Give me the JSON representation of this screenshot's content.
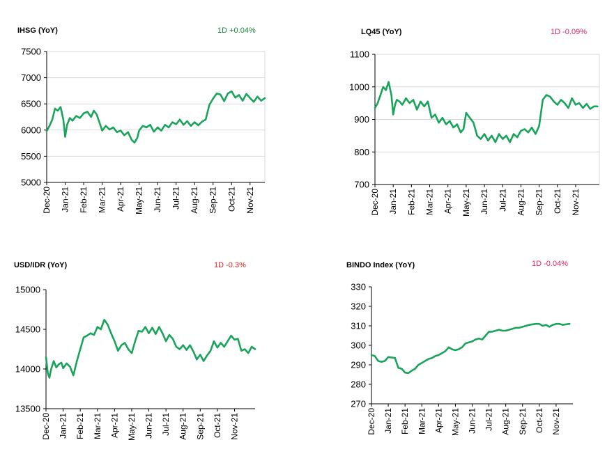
{
  "colors": {
    "line": "#1aa35a",
    "positive": "#1a8a3a",
    "negative": "#e0245e",
    "negative_red": "#e02020"
  },
  "chart_data": [
    {
      "id": "ihsg",
      "type": "line",
      "title": "IHSG (YoY)",
      "change_label": "1D +0.04%",
      "change_color": "#1a8a3a",
      "ylim": [
        5000,
        7500
      ],
      "yticks": [
        5000,
        5500,
        6000,
        6500,
        7000,
        7500
      ],
      "ytick_labels": [
        "5000",
        "5500",
        "6000",
        "6500",
        "7000",
        "7500"
      ],
      "categories": [
        "Dec-20",
        "Jan-21",
        "Feb-21",
        "Mar-21",
        "Apr-21",
        "May-21",
        "Jun-21",
        "Jul-21",
        "Aug-21",
        "Sep-21",
        "Oct-21",
        "Nov-21"
      ],
      "xlim": [
        0,
        11.8
      ],
      "grid": true,
      "series": [
        {
          "name": "IHSG",
          "x": [
            0,
            0.15,
            0.3,
            0.45,
            0.6,
            0.75,
            0.9,
            1.0,
            1.1,
            1.25,
            1.4,
            1.6,
            1.8,
            2.0,
            2.2,
            2.4,
            2.55,
            2.7,
            2.85,
            3.0,
            3.2,
            3.4,
            3.6,
            3.8,
            4.0,
            4.2,
            4.4,
            4.6,
            4.75,
            4.9,
            5.0,
            5.2,
            5.4,
            5.6,
            5.8,
            6.0,
            6.2,
            6.4,
            6.6,
            6.8,
            7.0,
            7.2,
            7.4,
            7.6,
            7.8,
            8.0,
            8.2,
            8.4,
            8.6,
            8.8,
            9.0,
            9.2,
            9.4,
            9.6,
            9.8,
            10.0,
            10.2,
            10.4,
            10.6,
            10.8,
            11.0,
            11.2,
            11.4,
            11.6,
            11.8
          ],
          "values": [
            5980,
            6080,
            6200,
            6410,
            6370,
            6440,
            6200,
            5870,
            6100,
            6230,
            6180,
            6270,
            6230,
            6320,
            6350,
            6250,
            6370,
            6300,
            6150,
            5990,
            6080,
            6010,
            6050,
            5960,
            5990,
            5900,
            5960,
            5810,
            5760,
            5850,
            5990,
            6080,
            6050,
            6100,
            5970,
            6050,
            5990,
            6100,
            6050,
            6150,
            6110,
            6200,
            6100,
            6170,
            6080,
            6150,
            6090,
            6160,
            6200,
            6480,
            6600,
            6700,
            6680,
            6550,
            6700,
            6740,
            6620,
            6670,
            6560,
            6690,
            6610,
            6540,
            6640,
            6560,
            6610
          ]
        }
      ]
    },
    {
      "id": "lq45",
      "type": "line",
      "title": "LQ45 (YoY)",
      "change_label": "1D -0.09%",
      "change_color": "#e0245e",
      "ylim": [
        700,
        1100
      ],
      "yticks": [
        700,
        800,
        900,
        1000,
        1100
      ],
      "ytick_labels": [
        "700",
        "800",
        "900",
        "1000",
        "1100"
      ],
      "categories": [
        "Dec-20",
        "Jan-21",
        "Feb-21",
        "Mar-21",
        "Apr-21",
        "May-21",
        "Jun-21",
        "Jul-21",
        "Aug-21",
        "Sep-21",
        "Oct-21",
        "Nov-21"
      ],
      "xlim": [
        0,
        12.3
      ],
      "grid": true,
      "series": [
        {
          "name": "LQ45",
          "x": [
            0,
            0.15,
            0.3,
            0.45,
            0.6,
            0.75,
            0.9,
            1.0,
            1.1,
            1.2,
            1.35,
            1.5,
            1.7,
            1.9,
            2.1,
            2.3,
            2.5,
            2.7,
            2.9,
            3.1,
            3.3,
            3.5,
            3.7,
            3.9,
            4.1,
            4.3,
            4.5,
            4.7,
            4.85,
            5.0,
            5.2,
            5.4,
            5.6,
            5.8,
            6.0,
            6.2,
            6.4,
            6.6,
            6.8,
            7.0,
            7.2,
            7.4,
            7.6,
            7.8,
            8.0,
            8.2,
            8.4,
            8.6,
            8.8,
            9.0,
            9.2,
            9.4,
            9.6,
            9.8,
            10.0,
            10.2,
            10.4,
            10.6,
            10.8,
            11.0,
            11.2,
            11.4,
            11.6,
            11.8,
            12.0,
            12.2
          ],
          "values": [
            935,
            950,
            975,
            1000,
            990,
            1015,
            975,
            915,
            945,
            960,
            955,
            945,
            965,
            950,
            960,
            930,
            955,
            940,
            955,
            905,
            915,
            890,
            905,
            885,
            895,
            875,
            885,
            860,
            870,
            920,
            905,
            890,
            850,
            840,
            855,
            835,
            850,
            830,
            855,
            840,
            850,
            830,
            855,
            845,
            865,
            870,
            860,
            875,
            855,
            880,
            960,
            975,
            970,
            955,
            945,
            960,
            950,
            935,
            965,
            945,
            950,
            935,
            948,
            932,
            940,
            940
          ]
        }
      ]
    },
    {
      "id": "usdidr",
      "type": "line",
      "title": "USD/IDR (YoY)",
      "change_label": "1D -0.3%",
      "change_color": "#e02020",
      "ylim": [
        13500,
        15000
      ],
      "yticks": [
        13500,
        14000,
        14500,
        15000
      ],
      "ytick_labels": [
        "13500",
        "14000",
        "14500",
        "15000"
      ],
      "categories": [
        "Dec-20",
        "Jan-21",
        "Feb-21",
        "Mar-21",
        "Apr-21",
        "May-21",
        "Jun-21",
        "Jul-21",
        "Aug-21",
        "Sep-21",
        "Oct-21",
        "Nov-21"
      ],
      "xlim": [
        0,
        12.2
      ],
      "grid": false,
      "series": [
        {
          "name": "USD/IDR",
          "x": [
            0,
            0.1,
            0.2,
            0.3,
            0.45,
            0.6,
            0.75,
            0.9,
            1.0,
            1.2,
            1.4,
            1.6,
            1.8,
            2.0,
            2.2,
            2.4,
            2.6,
            2.8,
            3.0,
            3.2,
            3.4,
            3.6,
            3.8,
            4.0,
            4.2,
            4.4,
            4.6,
            4.8,
            5.0,
            5.2,
            5.4,
            5.6,
            5.8,
            6.0,
            6.2,
            6.4,
            6.6,
            6.8,
            7.0,
            7.2,
            7.4,
            7.6,
            7.8,
            8.0,
            8.2,
            8.4,
            8.6,
            8.8,
            9.0,
            9.2,
            9.4,
            9.6,
            9.8,
            10.0,
            10.2,
            10.4,
            10.6,
            10.8,
            11.0,
            11.2,
            11.4,
            11.6,
            11.8,
            12.0,
            12.2
          ],
          "values": [
            14150,
            13950,
            13890,
            14000,
            14100,
            14020,
            14060,
            14080,
            14010,
            14070,
            14030,
            13920,
            14100,
            14250,
            14400,
            14420,
            14450,
            14430,
            14530,
            14500,
            14620,
            14560,
            14450,
            14350,
            14230,
            14300,
            14330,
            14250,
            14200,
            14350,
            14480,
            14470,
            14530,
            14450,
            14520,
            14440,
            14530,
            14450,
            14350,
            14430,
            14380,
            14280,
            14250,
            14300,
            14240,
            14300,
            14220,
            14120,
            14180,
            14100,
            14170,
            14230,
            14350,
            14270,
            14330,
            14280,
            14350,
            14420,
            14370,
            14380,
            14230,
            14250,
            14200,
            14280,
            14250
          ]
        }
      ]
    },
    {
      "id": "bindo",
      "type": "line",
      "title": "BINDO Index (YoY)",
      "change_label": "1D -0.04%",
      "change_color": "#e0245e",
      "ylim": [
        270,
        330
      ],
      "yticks": [
        270,
        280,
        290,
        300,
        310,
        320,
        330
      ],
      "ytick_labels": [
        "270",
        "280",
        "290",
        "300",
        "310",
        "320",
        "330"
      ],
      "categories": [
        "Dec-20",
        "Jan-21",
        "Feb-21",
        "Mar-21",
        "Apr-21",
        "May-21",
        "Jun-21",
        "Jul-21",
        "Aug-21",
        "Sep-21",
        "Oct-21",
        "Nov-21"
      ],
      "xlim": [
        0,
        12.0
      ],
      "grid": false,
      "series": [
        {
          "name": "BINDO",
          "x": [
            0,
            0.2,
            0.4,
            0.6,
            0.8,
            1.0,
            1.2,
            1.4,
            1.6,
            1.8,
            2.0,
            2.2,
            2.4,
            2.6,
            2.8,
            3.0,
            3.2,
            3.4,
            3.6,
            3.8,
            4.0,
            4.2,
            4.4,
            4.6,
            4.8,
            5.0,
            5.2,
            5.4,
            5.6,
            5.8,
            6.0,
            6.2,
            6.4,
            6.6,
            6.8,
            7.0,
            7.2,
            7.4,
            7.6,
            7.8,
            8.0,
            8.2,
            8.4,
            8.6,
            8.8,
            9.0,
            9.2,
            9.4,
            9.6,
            9.8,
            10.0,
            10.2,
            10.4,
            10.6,
            10.8,
            11.0,
            11.2,
            11.4,
            11.6,
            11.8
          ],
          "values": [
            295,
            294.5,
            292,
            291.5,
            292,
            294,
            293.8,
            293.5,
            288.5,
            288,
            286,
            285.8,
            287,
            288,
            290,
            291,
            292,
            293,
            293.5,
            294.5,
            295,
            296,
            297,
            299,
            298,
            297.5,
            298,
            299,
            301,
            301.5,
            302,
            303,
            303.5,
            303,
            305,
            307,
            307,
            307.5,
            308,
            307.5,
            307.5,
            308,
            308.5,
            309,
            309,
            309.5,
            310,
            310.5,
            310.8,
            311,
            311,
            310,
            310.5,
            309.5,
            310.5,
            311,
            311,
            310.5,
            310.8,
            311
          ]
        }
      ]
    }
  ]
}
